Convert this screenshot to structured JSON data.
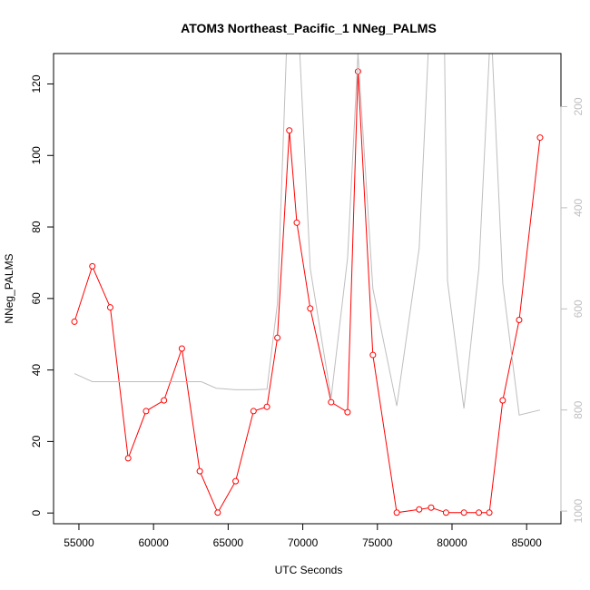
{
  "chart_data": {
    "type": "line",
    "title": "ATOM3 Northeast_Pacific_1 NNeg_PALMS",
    "xlabel": "UTC Seconds",
    "ylabel": "NNeg_PALMS",
    "xlim": [
      53300,
      87300
    ],
    "ylim": [
      -3,
      128.5
    ],
    "x_ticks": [
      55000,
      60000,
      65000,
      70000,
      75000,
      80000,
      85000
    ],
    "y_ticks": [
      0,
      20,
      40,
      60,
      80,
      100,
      120
    ],
    "y2_ticks": [
      200,
      400,
      600,
      800,
      1000
    ],
    "y2_range_top_to_bottom": [
      95,
      1025
    ],
    "grid": false,
    "series": [
      {
        "color": "#ff0000",
        "markers": "open-circle",
        "axis": "left",
        "points": [
          [
            54700,
            53.5
          ],
          [
            55900,
            69
          ],
          [
            57100,
            57.5
          ],
          [
            58300,
            15.3
          ],
          [
            59500,
            28.5
          ],
          [
            60700,
            31.5
          ],
          [
            61900,
            46
          ],
          [
            63100,
            11.7
          ],
          [
            64300,
            0.1
          ],
          [
            65500,
            8.9
          ],
          [
            66700,
            28.5
          ],
          [
            67600,
            29.7
          ],
          [
            68300,
            49
          ],
          [
            69100,
            107
          ],
          [
            69600,
            81.2
          ],
          [
            70500,
            57.2
          ],
          [
            71900,
            31
          ],
          [
            73000,
            28.2
          ],
          [
            73700,
            123.5
          ],
          [
            74700,
            44.2
          ],
          [
            76300,
            0.1
          ],
          [
            77800,
            1
          ],
          [
            78600,
            1.5
          ],
          [
            79600,
            0.1
          ],
          [
            80800,
            0.1
          ],
          [
            81800,
            0.1
          ],
          [
            82500,
            0.1
          ],
          [
            83400,
            31.5
          ],
          [
            84500,
            54
          ],
          [
            85900,
            105
          ]
        ]
      },
      {
        "color": "#bebebe",
        "markers": "none",
        "axis": "right",
        "points": [
          [
            54700,
            728
          ],
          [
            55900,
            744
          ],
          [
            57500,
            744
          ],
          [
            60000,
            744
          ],
          [
            63200,
            744
          ],
          [
            64200,
            757
          ],
          [
            65500,
            760
          ],
          [
            66700,
            760
          ],
          [
            67600,
            759
          ],
          [
            68300,
            590
          ],
          [
            68900,
            95
          ],
          [
            69800,
            95
          ],
          [
            70500,
            520
          ],
          [
            71900,
            776
          ],
          [
            73000,
            500
          ],
          [
            73700,
            95
          ],
          [
            74700,
            560
          ],
          [
            76300,
            792
          ],
          [
            77800,
            480
          ],
          [
            78400,
            95
          ],
          [
            79500,
            95
          ],
          [
            79700,
            545
          ],
          [
            80800,
            797
          ],
          [
            81800,
            520
          ],
          [
            82500,
            95
          ],
          [
            82700,
            95
          ],
          [
            83400,
            550
          ],
          [
            84500,
            810
          ],
          [
            85900,
            800
          ]
        ]
      }
    ]
  }
}
